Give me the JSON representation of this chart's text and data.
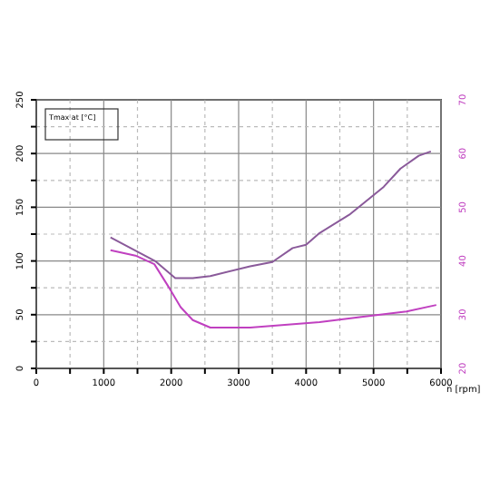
{
  "chart_data": {
    "type": "line",
    "legend_title": "Tmax at [°C]",
    "xlabel": "n [rpm]",
    "xlim": [
      0,
      6000
    ],
    "xticks": [
      0,
      {
        "value": 500,
        "label": null
      },
      1000,
      {
        "value": 1500,
        "label": null
      },
      2000,
      {
        "value": 2500,
        "label": null
      },
      3000,
      {
        "value": 3500,
        "label": null
      },
      4000,
      {
        "value": 4500,
        "label": null
      },
      5000,
      {
        "value": 5500,
        "label": null
      },
      6000
    ],
    "ylim": [
      0,
      250
    ],
    "yticks": [
      0,
      {
        "value": 25,
        "label": null
      },
      50,
      {
        "value": 75,
        "label": null
      },
      100,
      {
        "value": 125,
        "label": null
      },
      150,
      {
        "value": 175,
        "label": null
      },
      200,
      {
        "value": 225,
        "label": null
      },
      250
    ],
    "y2lim": [
      20,
      70
    ],
    "y2ticks": [
      20,
      30,
      40,
      50,
      60,
      70
    ],
    "grid": true,
    "series": [
      {
        "color": "#8a5a9a",
        "x": [
          1100,
          1760,
          2060,
          2320,
          2580,
          3170,
          3500,
          3800,
          4000,
          4200,
          4640,
          5150,
          5400,
          5670,
          5850
        ],
        "values": [
          122,
          100,
          84,
          84,
          86,
          95,
          99,
          112,
          115,
          126,
          143,
          169,
          186,
          198,
          202
        ]
      },
      {
        "color": "#c040c0",
        "x": [
          1100,
          1470,
          1750,
          1980,
          2140,
          2320,
          2580,
          3170,
          4200,
          4820,
          5490,
          5930
        ],
        "values": [
          110,
          105,
          97,
          74,
          57,
          45,
          38,
          38,
          43,
          48,
          53,
          59
        ]
      }
    ]
  }
}
